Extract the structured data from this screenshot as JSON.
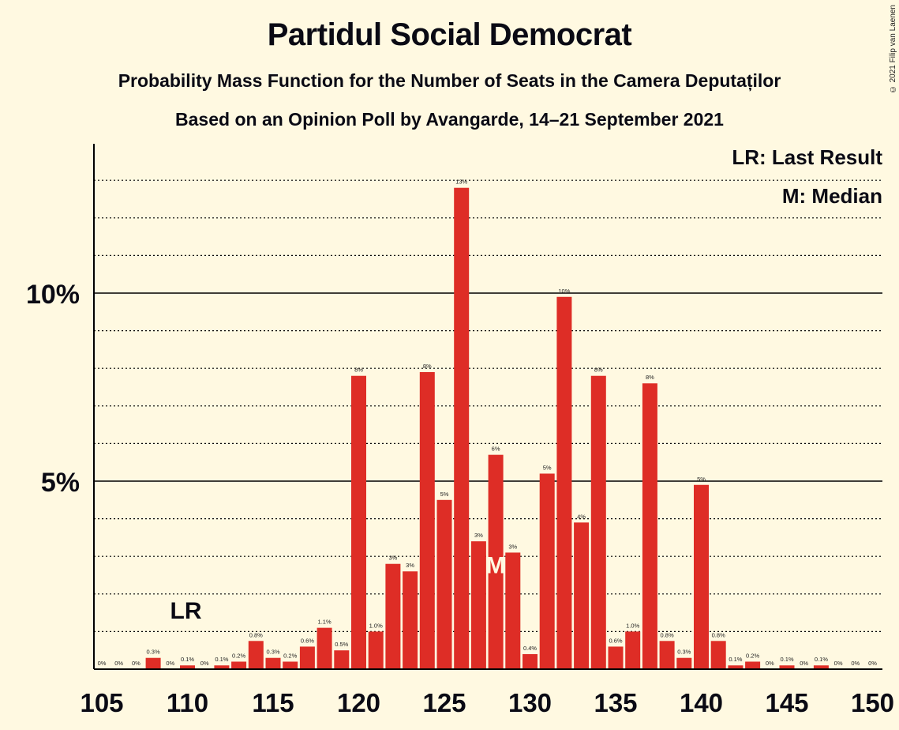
{
  "title": "Partidul Social Democrat",
  "subtitle": "Probability Mass Function for the Number of Seats in the Camera Deputaților",
  "subtitle2": "Based on an Opinion Poll by Avangarde, 14–21 September 2021",
  "copyright": "© 2021 Filip van Laenen",
  "legend": {
    "last_result": "LR: Last Result",
    "median": "M: Median"
  },
  "colors": {
    "bar": "#de2d26",
    "background": "#fff9e1",
    "text": "#0a0a14"
  },
  "chart_data": {
    "type": "bar",
    "title": "Partidul Social Democrat",
    "xlabel": "",
    "ylabel": "",
    "ylim": [
      0,
      14
    ],
    "yticks": [
      {
        "value": 5,
        "label": "5%"
      },
      {
        "value": 10,
        "label": "10%"
      }
    ],
    "xticks": [
      105,
      110,
      115,
      120,
      125,
      130,
      135,
      140,
      145,
      150
    ],
    "grid": "dotted lines every 1%, solid lines at 5% and 10%",
    "last_result": {
      "seats": 110,
      "label": "LR"
    },
    "median": {
      "seats": 128,
      "label": "M"
    },
    "categories": [
      105,
      106,
      107,
      108,
      109,
      110,
      111,
      112,
      113,
      114,
      115,
      116,
      117,
      118,
      119,
      120,
      121,
      122,
      123,
      124,
      125,
      126,
      127,
      128,
      129,
      130,
      131,
      132,
      133,
      134,
      135,
      136,
      137,
      138,
      139,
      140,
      141,
      142,
      143,
      144,
      145,
      146,
      147,
      148,
      149,
      150
    ],
    "values": [
      0,
      0,
      0,
      0.3,
      0,
      0.1,
      0,
      0.1,
      0.2,
      0.75,
      0.3,
      0.2,
      0.6,
      1.1,
      0.5,
      7.8,
      1.0,
      2.8,
      2.6,
      7.9,
      4.5,
      12.8,
      3.4,
      5.7,
      3.1,
      0.4,
      5.2,
      9.9,
      3.9,
      7.8,
      0.6,
      1.0,
      7.6,
      0.75,
      0.3,
      4.9,
      0.75,
      0.1,
      0.2,
      0,
      0.1,
      0,
      0.1,
      0,
      0,
      0
    ],
    "labels": [
      "0%",
      "0%",
      "0%",
      "0.3%",
      "0%",
      "0.1%",
      "0%",
      "0.1%",
      "0.2%",
      "0.8%",
      "0.3%",
      "0.2%",
      "0.6%",
      "1.1%",
      "0.5%",
      "8%",
      "1.0%",
      "3%",
      "3%",
      "8%",
      "5%",
      "13%",
      "3%",
      "6%",
      "3%",
      "0.4%",
      "5%",
      "10%",
      "4%",
      "8%",
      "0.6%",
      "1.0%",
      "8%",
      "0.8%",
      "0.3%",
      "5%",
      "0.8%",
      "0.1%",
      "0.2%",
      "0%",
      "0.1%",
      "0%",
      "0.1%",
      "0%",
      "0%",
      "0%"
    ]
  }
}
